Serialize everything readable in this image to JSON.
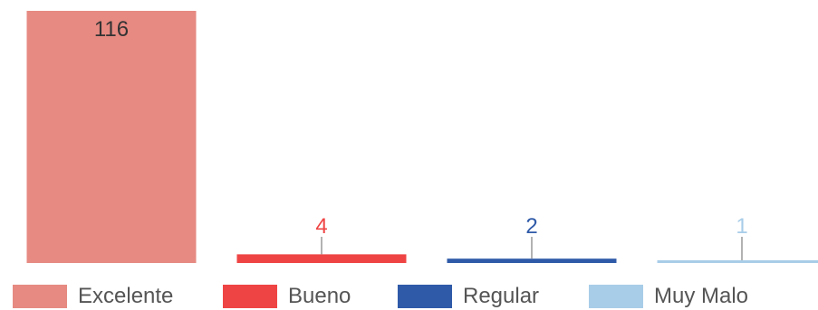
{
  "chart_data": {
    "type": "bar",
    "categories": [
      "Excelente",
      "Bueno",
      "Regular",
      "Muy Malo"
    ],
    "values": [
      116,
      4,
      2,
      1
    ],
    "colors": [
      "#e68a82",
      "#ef4444",
      "#2f5aa8",
      "#a8cde8"
    ],
    "data_labels": [
      "116",
      "4",
      "2",
      "1"
    ],
    "title": "",
    "xlabel": "",
    "ylabel": "",
    "ylim": [
      0,
      116
    ],
    "grid": false,
    "legend_position": "bottom"
  }
}
